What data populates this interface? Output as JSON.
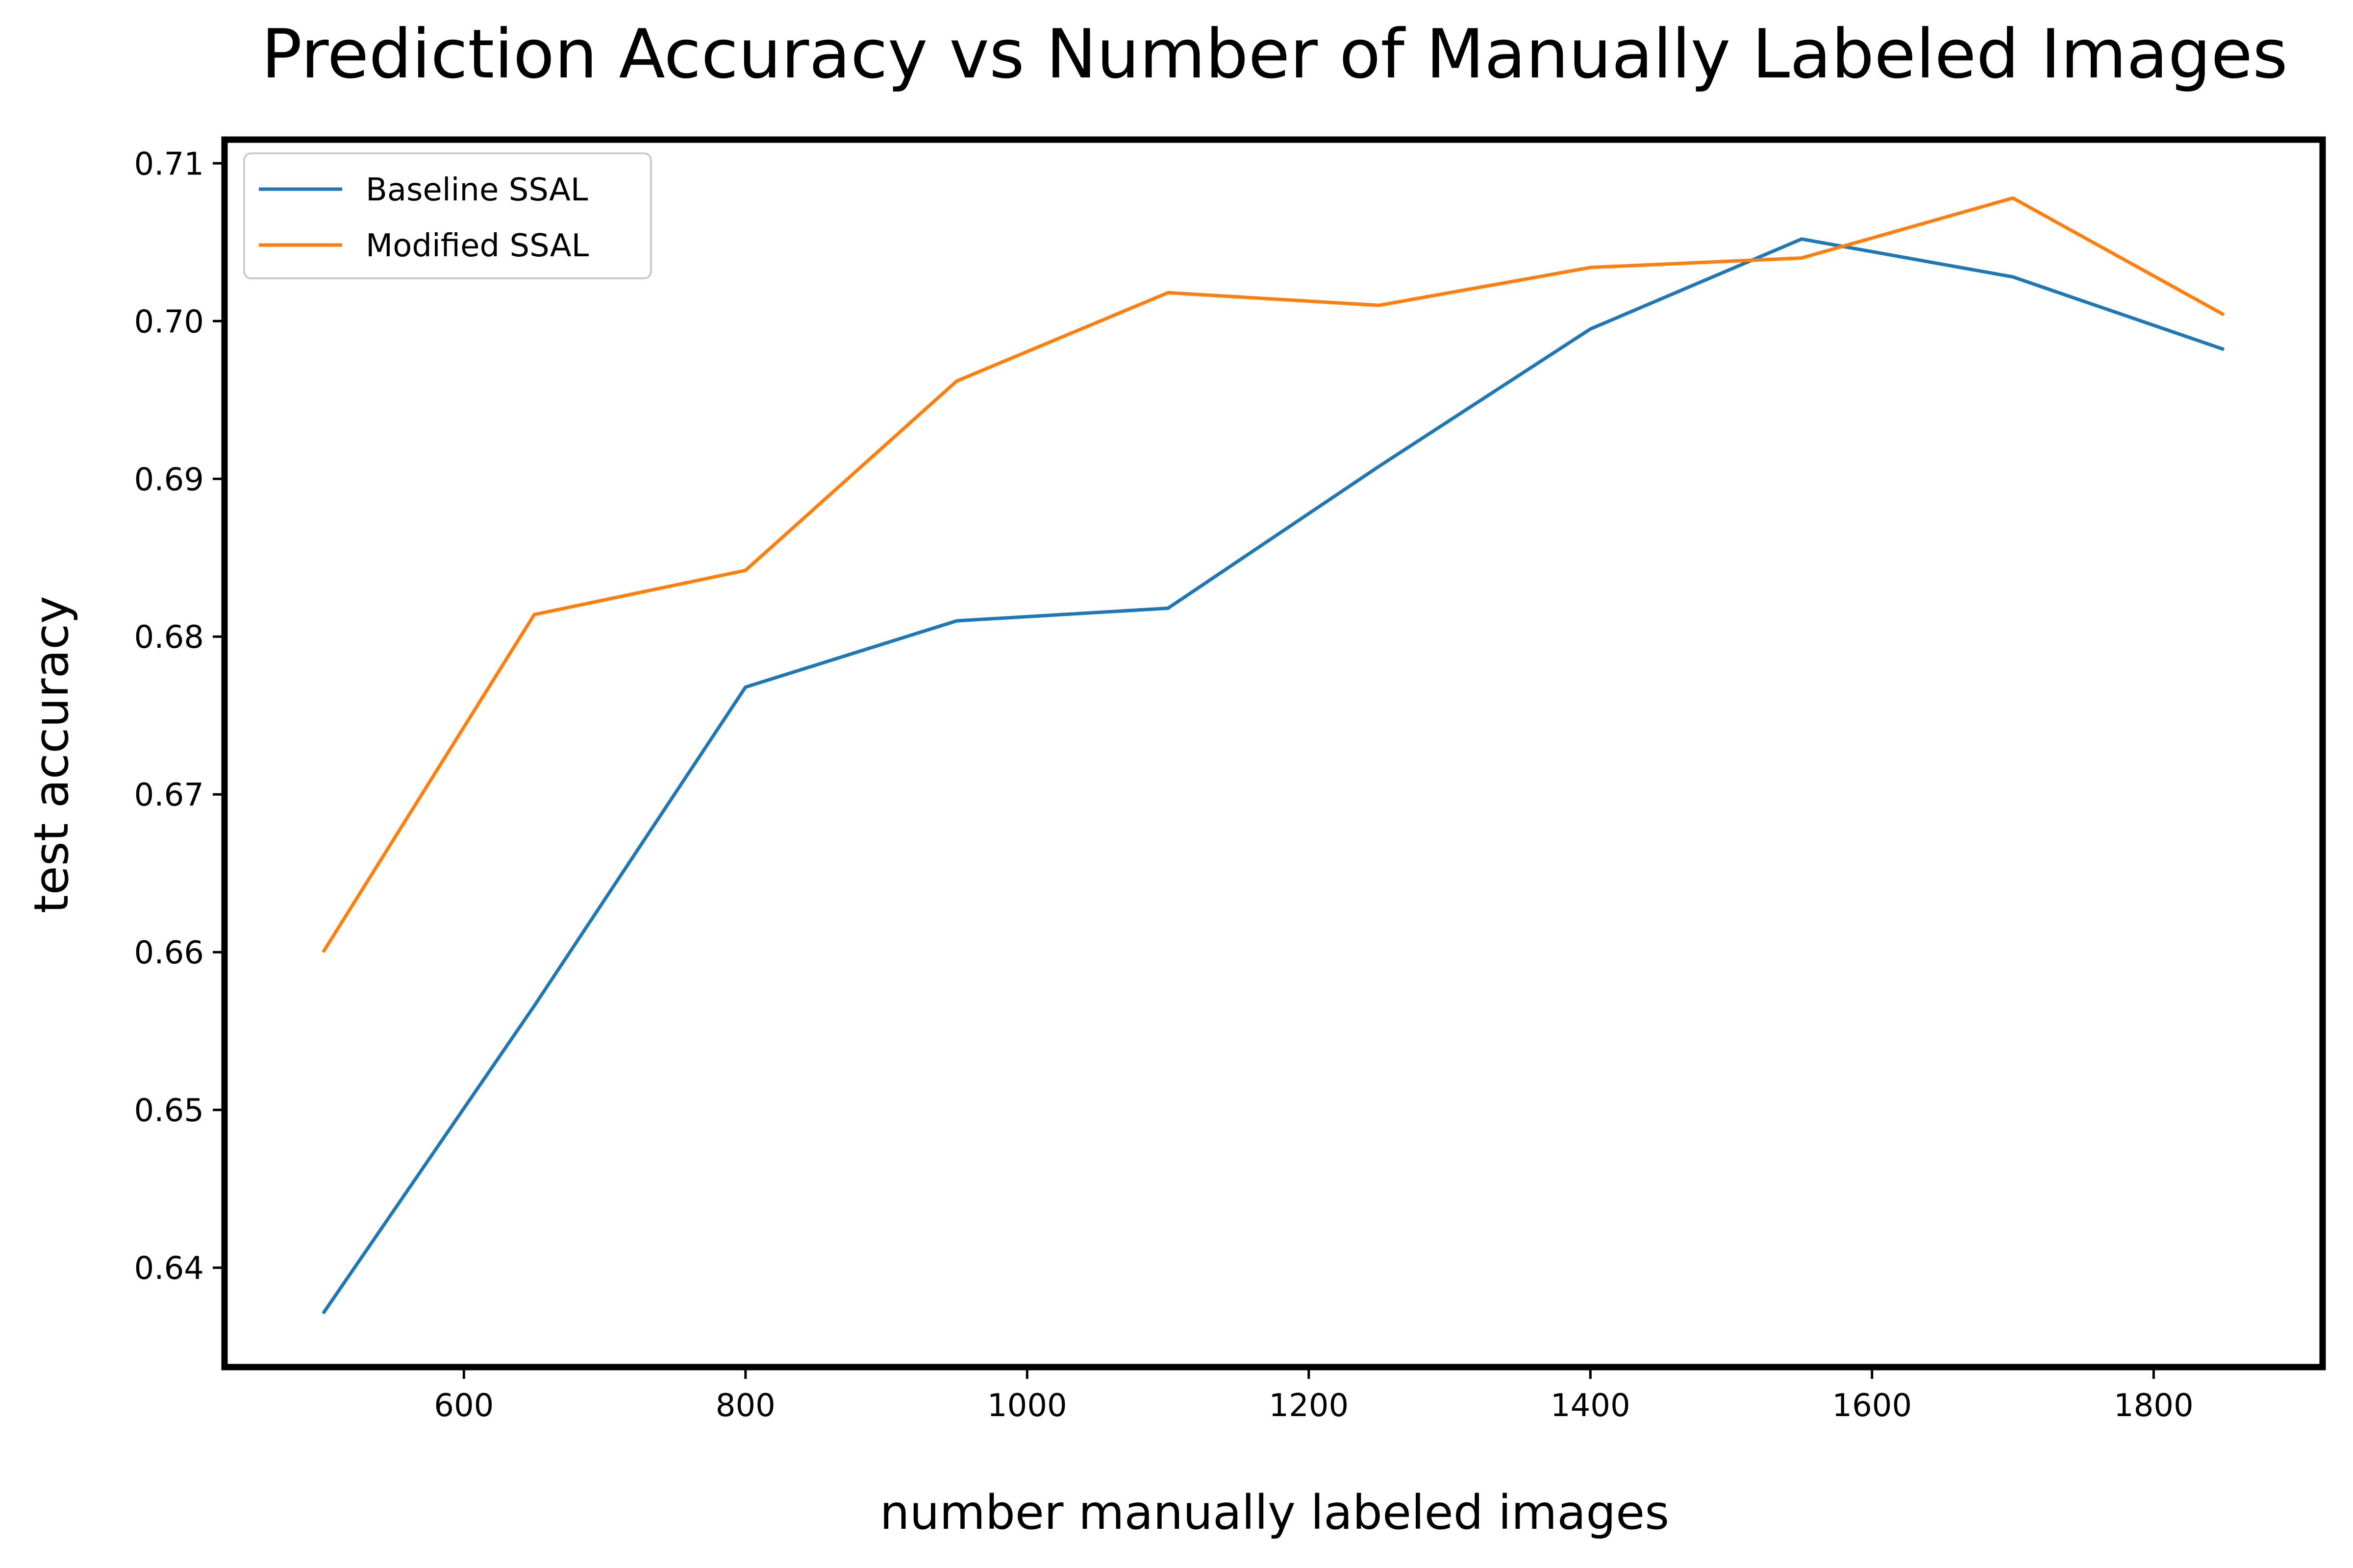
{
  "chart_data": {
    "type": "line",
    "title": "Prediction Accuracy vs Number of Manually Labeled Images",
    "xlabel": "number manually labeled images",
    "ylabel": "test accuracy",
    "x": [
      500,
      650,
      800,
      950,
      1100,
      1250,
      1400,
      1550,
      1700,
      1850
    ],
    "xlim": [
      430,
      1920
    ],
    "ylim": [
      0.6337,
      0.7115
    ],
    "xticks": [
      600,
      800,
      1000,
      1200,
      1400,
      1600,
      1800
    ],
    "xtick_labels": [
      "600",
      "800",
      "1000",
      "1200",
      "1400",
      "1600",
      "1800"
    ],
    "yticks": [
      0.64,
      0.65,
      0.66,
      0.67,
      0.68,
      0.69,
      0.7,
      0.71
    ],
    "ytick_labels": [
      "0.64",
      "0.65",
      "0.66",
      "0.67",
      "0.68",
      "0.69",
      "0.70",
      "0.71"
    ],
    "grid": false,
    "legend_position": "top-left",
    "series": [
      {
        "name": "Baseline SSAL",
        "color": "#1f77b4",
        "values": [
          0.6371,
          0.6566,
          0.6768,
          0.681,
          0.6818,
          0.6908,
          0.6995,
          0.7052,
          0.7028,
          0.6982
        ]
      },
      {
        "name": "Modified SSAL",
        "color": "#ff7f0e",
        "values": [
          0.66,
          0.6814,
          0.6842,
          0.6962,
          0.7018,
          0.701,
          0.7034,
          0.704,
          0.7078,
          0.7004
        ]
      }
    ]
  }
}
